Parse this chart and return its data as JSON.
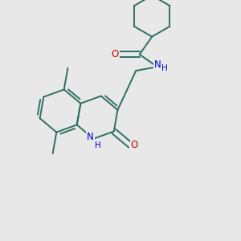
{
  "bg_color": "#e8e8e8",
  "bond_color": "#2d7060",
  "atom_colors": {
    "O": "#cc0000",
    "N": "#0000cc"
  },
  "bond_width": 1.4,
  "font_size": 8.5
}
